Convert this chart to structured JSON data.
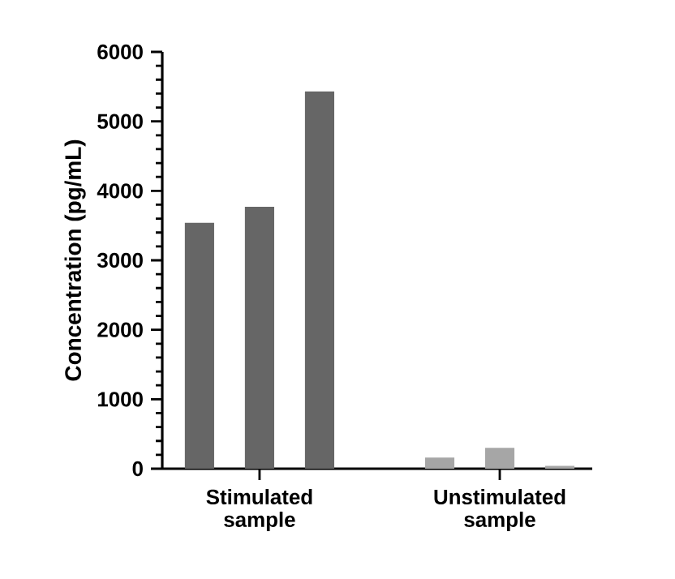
{
  "chart_data": {
    "type": "bar",
    "ylabel": "Concentration (pg/mL)",
    "categories": [
      "Stimulated sample",
      "Unstimulated sample"
    ],
    "series": [
      {
        "values": [
          3540,
          160
        ],
        "colors": [
          "#666666",
          "#a6a6a6"
        ]
      },
      {
        "values": [
          3770,
          300
        ],
        "colors": [
          "#666666",
          "#a6a6a6"
        ]
      },
      {
        "values": [
          5430,
          40
        ],
        "colors": [
          "#666666",
          "#a6a6a6"
        ]
      }
    ],
    "ylim": [
      0,
      6000
    ],
    "yticks": [
      0,
      1000,
      2000,
      3000,
      4000,
      5000,
      6000
    ],
    "grid": false
  }
}
